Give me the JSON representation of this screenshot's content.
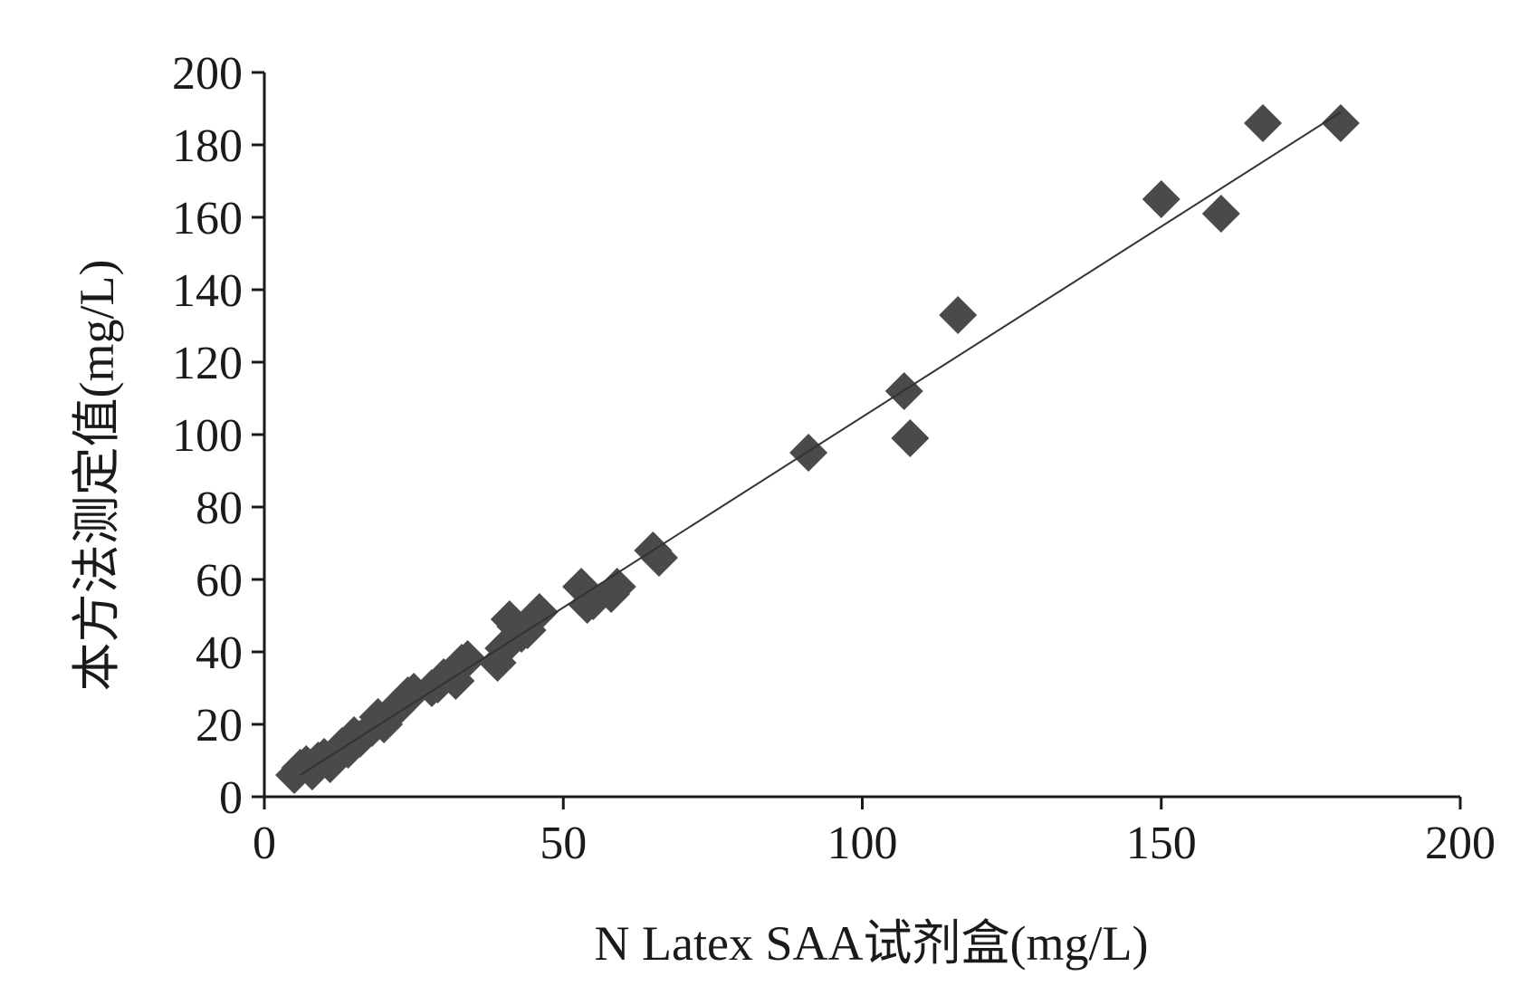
{
  "chart_data": {
    "type": "scatter",
    "title": "",
    "xlabel": "N Latex SAA试剂盒(mg/L)",
    "ylabel": "本方法测定值(mg/L)",
    "xlim": [
      0,
      200
    ],
    "ylim": [
      0,
      200
    ],
    "xticks": [
      0,
      50,
      100,
      150,
      200
    ],
    "yticks": [
      0,
      20,
      40,
      60,
      80,
      100,
      120,
      140,
      160,
      180,
      200
    ],
    "grid": false,
    "legend": "none",
    "marker": "diamond",
    "marker_color": "#4a4a4a",
    "line_color": "#333333",
    "trendline": {
      "x": [
        6,
        180
      ],
      "y": [
        6,
        189
      ]
    },
    "series": [
      {
        "points": [
          {
            "x": 5,
            "y": 6
          },
          {
            "x": 6,
            "y": 8
          },
          {
            "x": 7,
            "y": 9
          },
          {
            "x": 8,
            "y": 7
          },
          {
            "x": 9,
            "y": 10
          },
          {
            "x": 10,
            "y": 11
          },
          {
            "x": 11,
            "y": 9
          },
          {
            "x": 12,
            "y": 12
          },
          {
            "x": 13,
            "y": 14
          },
          {
            "x": 14,
            "y": 13
          },
          {
            "x": 15,
            "y": 17
          },
          {
            "x": 16,
            "y": 16
          },
          {
            "x": 18,
            "y": 19
          },
          {
            "x": 19,
            "y": 22
          },
          {
            "x": 20,
            "y": 20
          },
          {
            "x": 21,
            "y": 23
          },
          {
            "x": 22,
            "y": 24
          },
          {
            "x": 23,
            "y": 26
          },
          {
            "x": 24,
            "y": 28
          },
          {
            "x": 25,
            "y": 29
          },
          {
            "x": 28,
            "y": 30
          },
          {
            "x": 29,
            "y": 31
          },
          {
            "x": 30,
            "y": 33
          },
          {
            "x": 32,
            "y": 32
          },
          {
            "x": 33,
            "y": 37
          },
          {
            "x": 34,
            "y": 38
          },
          {
            "x": 39,
            "y": 37
          },
          {
            "x": 40,
            "y": 41
          },
          {
            "x": 41,
            "y": 49
          },
          {
            "x": 42,
            "y": 47
          },
          {
            "x": 43,
            "y": 45
          },
          {
            "x": 44,
            "y": 46
          },
          {
            "x": 46,
            "y": 51
          },
          {
            "x": 53,
            "y": 58
          },
          {
            "x": 54,
            "y": 53
          },
          {
            "x": 55,
            "y": 54
          },
          {
            "x": 58,
            "y": 56
          },
          {
            "x": 59,
            "y": 58
          },
          {
            "x": 65,
            "y": 68
          },
          {
            "x": 66,
            "y": 66
          },
          {
            "x": 91,
            "y": 95
          },
          {
            "x": 107,
            "y": 112
          },
          {
            "x": 108,
            "y": 99
          },
          {
            "x": 116,
            "y": 133
          },
          {
            "x": 150,
            "y": 165
          },
          {
            "x": 160,
            "y": 161
          },
          {
            "x": 167,
            "y": 186
          },
          {
            "x": 180,
            "y": 186
          }
        ]
      }
    ]
  }
}
